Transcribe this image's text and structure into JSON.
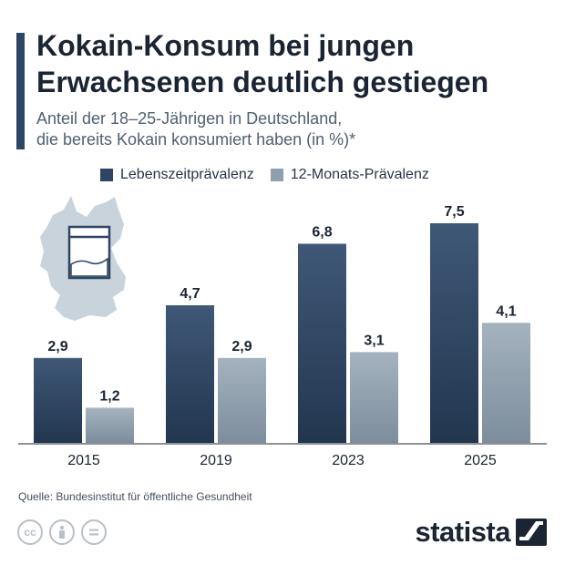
{
  "header": {
    "title_line1": "Kokain-Konsum bei jungen",
    "title_line2": "Erwachsenen deutlich gestiegen",
    "subtitle_line1": "Anteil der 18–25-Jährigen in Deutschland,",
    "subtitle_line2": "die bereits Kokain konsumiert haben (in %)*"
  },
  "colors": {
    "series_dark_top": "#3f5877",
    "series_dark_bottom": "#22364f",
    "series_light_top": "#a5b3bf",
    "series_light_bottom": "#7c8d9c",
    "map": "#c9d3dc",
    "accent": "#2e4663"
  },
  "icons": [
    "germany-map-icon",
    "powder-bag-icon",
    "cc-icon",
    "attribution-icon",
    "no-derivatives-icon",
    "statista-logo-icon"
  ],
  "chart_data": {
    "type": "bar",
    "categories": [
      "2015",
      "2019",
      "2023",
      "2025"
    ],
    "series": [
      {
        "name": "Lebenszeitprävalenz",
        "values": [
          2.9,
          4.7,
          6.8,
          7.5
        ],
        "labels": [
          "2,9",
          "4,7",
          "6,8",
          "7,5"
        ]
      },
      {
        "name": "12-Monats-Prävalenz",
        "values": [
          1.2,
          2.9,
          3.1,
          4.1
        ],
        "labels": [
          "1,2",
          "2,9",
          "3,1",
          "4,1"
        ]
      }
    ],
    "ylim": [
      0,
      7.5
    ],
    "grid": false,
    "legend": "top"
  },
  "footer": {
    "source": "Quelle: Bundesinstitut für öffentliche Gesundheit",
    "brand": "statista"
  }
}
